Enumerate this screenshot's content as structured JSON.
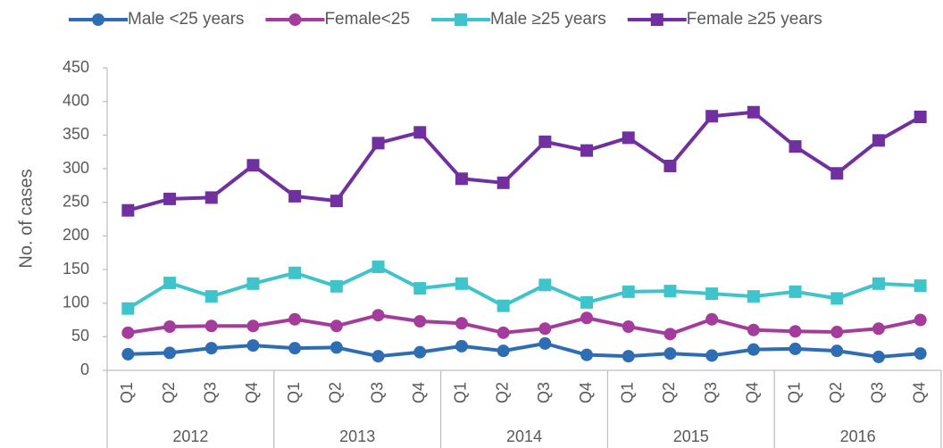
{
  "chart_data": {
    "type": "line",
    "y_label": "No. of cases",
    "categories": [
      "Q1",
      "Q2",
      "Q3",
      "Q4",
      "Q1",
      "Q2",
      "Q3",
      "Q4",
      "Q1",
      "Q2",
      "Q3",
      "Q4",
      "Q1",
      "Q2",
      "Q3",
      "Q4",
      "Q1",
      "Q2",
      "Q3",
      "Q4"
    ],
    "category_groups": [
      "2012",
      "2013",
      "2014",
      "2015",
      "2016"
    ],
    "series": [
      {
        "name": "Male <25 years",
        "color": "#2e6db4",
        "marker": "circle",
        "values": [
          24,
          26,
          33,
          37,
          33,
          34,
          21,
          27,
          36,
          29,
          40,
          23,
          21,
          25,
          22,
          31,
          32,
          29,
          20,
          25
        ]
      },
      {
        "name": "Female<25",
        "color": "#a43c9c",
        "marker": "circle",
        "values": [
          56,
          65,
          66,
          66,
          76,
          66,
          82,
          73,
          70,
          56,
          62,
          78,
          65,
          54,
          76,
          60,
          58,
          57,
          62,
          75
        ]
      },
      {
        "name": "Male ≥25 years",
        "color": "#40c4cc",
        "marker": "square",
        "values": [
          92,
          130,
          110,
          129,
          145,
          125,
          154,
          122,
          129,
          96,
          127,
          101,
          117,
          118,
          114,
          110,
          117,
          107,
          129,
          126
        ]
      },
      {
        "name": "Female ≥25 years",
        "color": "#7030a0",
        "marker": "square",
        "values": [
          238,
          255,
          257,
          305,
          259,
          252,
          338,
          354,
          285,
          279,
          340,
          327,
          346,
          304,
          378,
          384,
          333,
          293,
          342,
          377
        ]
      }
    ],
    "ylim": [
      0,
      450
    ],
    "yticks": [
      0,
      50,
      100,
      150,
      200,
      250,
      300,
      350,
      400,
      450
    ],
    "legend": "top",
    "grid": false
  }
}
